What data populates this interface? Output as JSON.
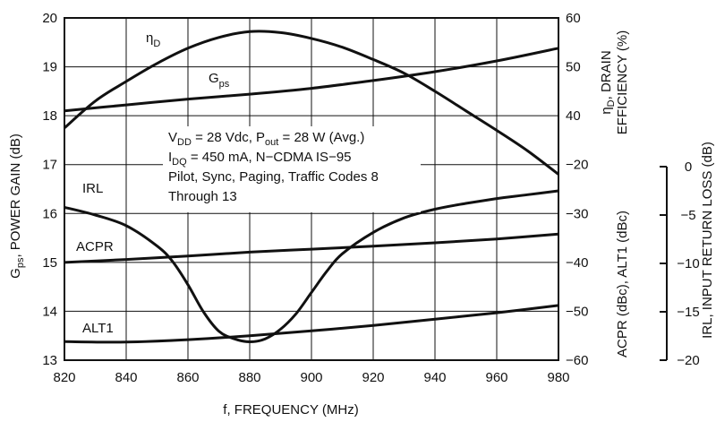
{
  "chart_data": {
    "type": "line",
    "x_axis": {
      "label": "f, FREQUENCY (MHz)",
      "lim": [
        820,
        980
      ],
      "ticks": [
        "820",
        "840",
        "860",
        "880",
        "900",
        "920",
        "940",
        "960",
        "980"
      ]
    },
    "y_left": {
      "label_main": "G",
      "label_sub": "ps",
      "label_rest": ", POWER GAIN (dB)",
      "lim": [
        13,
        20
      ],
      "ticks": [
        "13",
        "14",
        "15",
        "16",
        "17",
        "18",
        "19",
        "20"
      ]
    },
    "y_right_efficiency": {
      "label_line1_main": "η",
      "label_line1_sub": "D",
      "label_line1_rest": ", DRAIN",
      "label_line2": "EFFICIENCY (%)",
      "lim": [
        30,
        60
      ],
      "ticks": [
        "40",
        "50",
        "60"
      ]
    },
    "y_right_acpr": {
      "label": "ACPR (dBc), ALT1 (dBc)",
      "lim": [
        -60,
        -20
      ],
      "ticks": [
        "−20",
        "−30",
        "−40",
        "−50",
        "−60"
      ]
    },
    "y_right_irl": {
      "label": "IRL, INPUT RETURN LOSS (dB)",
      "lim": [
        -20,
        0
      ],
      "ticks": [
        "0",
        "−5",
        "−10",
        "−15",
        "−20"
      ]
    },
    "grid": true,
    "annotation": [
      {
        "main": "V",
        "sub": "DD",
        "rest": " = 28 Vdc, P",
        "sub2": "out",
        "rest2": " = 28 W (Avg.)"
      },
      {
        "main": "I",
        "sub": "DQ",
        "rest": " = 450 mA, N−CDMA IS−95",
        "sub2": "",
        "rest2": ""
      },
      {
        "main": "Pilot, Sync, Paging, Traffic Codes 8",
        "sub": "",
        "rest": "",
        "sub2": "",
        "rest2": ""
      },
      {
        "main": "Through 13",
        "sub": "",
        "rest": "",
        "sub2": "",
        "rest2": ""
      }
    ],
    "series": [
      {
        "name": "ηD",
        "label_main": "η",
        "label_sub": "D",
        "axis": "y_right_efficiency",
        "x": [
          820,
          830,
          840,
          850,
          860,
          870,
          880,
          890,
          900,
          910,
          920,
          930,
          940,
          950,
          960,
          970,
          980
        ],
        "y": [
          37.5,
          43.0,
          47.0,
          50.7,
          53.8,
          56.0,
          57.2,
          57.0,
          55.8,
          54.0,
          51.5,
          48.7,
          45.0,
          41.0,
          37.0,
          32.8,
          28.0
        ]
      },
      {
        "name": "Gps",
        "label_main": "G",
        "label_sub": "ps",
        "axis": "y_left",
        "x": [
          820,
          840,
          860,
          880,
          900,
          920,
          940,
          960,
          980
        ],
        "y": [
          18.1,
          18.22,
          18.34,
          18.44,
          18.56,
          18.72,
          18.9,
          19.12,
          19.38
        ]
      },
      {
        "name": "IRL",
        "label_main": "IRL",
        "label_sub": "",
        "axis": "y_right_irl",
        "x": [
          820,
          830,
          840,
          850,
          855,
          860,
          865,
          870,
          875,
          880,
          885,
          890,
          895,
          900,
          905,
          910,
          920,
          930,
          940,
          950,
          960,
          970,
          980
        ],
        "y": [
          -4.2,
          -5.0,
          -6.1,
          -8.2,
          -9.8,
          -12.2,
          -15.0,
          -17.0,
          -17.8,
          -18.1,
          -17.8,
          -16.8,
          -15.2,
          -13.0,
          -10.8,
          -9.0,
          -6.8,
          -5.3,
          -4.4,
          -3.8,
          -3.3,
          -2.9,
          -2.5
        ]
      },
      {
        "name": "ACPR",
        "label_main": "ACPR",
        "label_sub": "",
        "axis": "y_right_acpr",
        "x": [
          820,
          840,
          860,
          880,
          900,
          920,
          940,
          960,
          980
        ],
        "y": [
          -40.0,
          -39.4,
          -38.7,
          -37.9,
          -37.3,
          -36.7,
          -36.0,
          -35.2,
          -34.2
        ]
      },
      {
        "name": "ALT1",
        "label_main": "ALT1",
        "label_sub": "",
        "axis": "y_right_acpr",
        "x": [
          820,
          840,
          860,
          880,
          900,
          920,
          940,
          960,
          980
        ],
        "y": [
          -56.2,
          -56.3,
          -55.8,
          -55.0,
          -54.0,
          -52.9,
          -51.6,
          -50.3,
          -48.8
        ]
      }
    ]
  }
}
